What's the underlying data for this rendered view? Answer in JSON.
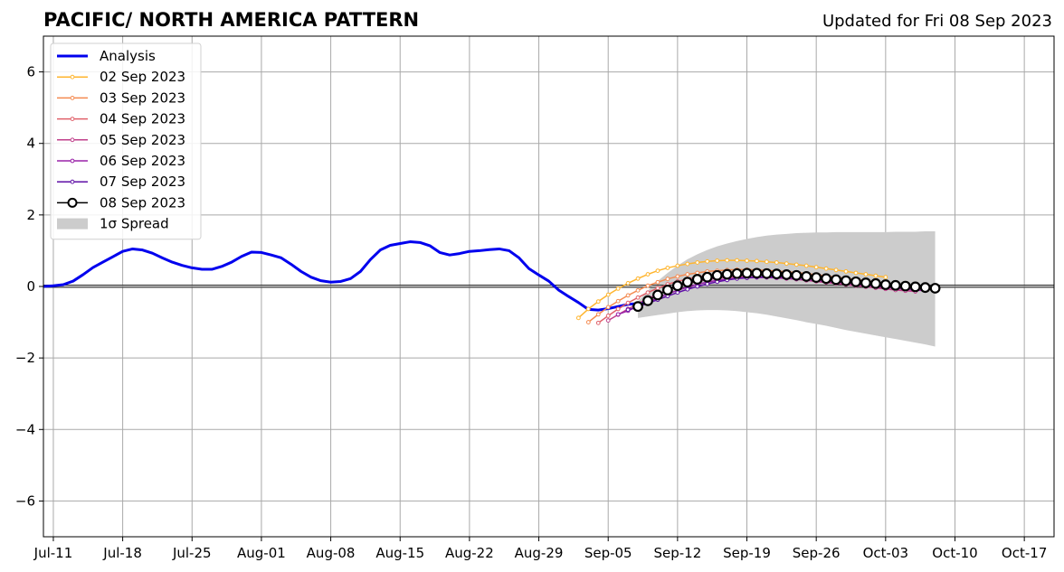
{
  "chart_data": {
    "type": "line",
    "title": "PACIFIC/ NORTH AMERICA PATTERN",
    "subtitle": "Updated for Fri 08 Sep 2023",
    "xlabel": "",
    "ylabel": "",
    "x_axis": {
      "type": "date",
      "range": [
        "2023-07-10",
        "2023-10-20"
      ],
      "tick_labels": [
        "Jul-11",
        "Jul-18",
        "Jul-25",
        "Aug-01",
        "Aug-08",
        "Aug-15",
        "Aug-22",
        "Aug-29",
        "Sep-05",
        "Sep-12",
        "Sep-19",
        "Sep-26",
        "Oct-03",
        "Oct-10",
        "Oct-17"
      ],
      "tick_dates": [
        "2023-07-11",
        "2023-07-18",
        "2023-07-25",
        "2023-08-01",
        "2023-08-08",
        "2023-08-15",
        "2023-08-22",
        "2023-08-29",
        "2023-09-05",
        "2023-09-12",
        "2023-09-19",
        "2023-09-26",
        "2023-10-03",
        "2023-10-10",
        "2023-10-17"
      ]
    },
    "y_axis": {
      "range": [
        -7,
        7
      ],
      "ticks": [
        -6,
        -4,
        -2,
        0,
        2,
        4,
        6
      ],
      "tick_labels": [
        "−6",
        "−4",
        "−2",
        "0",
        "2",
        "4",
        "6"
      ]
    },
    "grid": true,
    "zero_line": true,
    "legend": {
      "position": "top-left",
      "entries": [
        {
          "label": "Analysis",
          "color": "#0000ee",
          "style": "thick-line"
        },
        {
          "label": "02 Sep 2023",
          "color": "#ffb52e",
          "style": "dot-line"
        },
        {
          "label": "03 Sep 2023",
          "color": "#f48a50",
          "style": "dot-line"
        },
        {
          "label": "04 Sep 2023",
          "color": "#e0606a",
          "style": "dot-line"
        },
        {
          "label": "05 Sep 2023",
          "color": "#c03f8b",
          "style": "dot-line"
        },
        {
          "label": "06 Sep 2023",
          "color": "#9a22a8",
          "style": "dot-line"
        },
        {
          "label": "07 Sep 2023",
          "color": "#5e0fa6",
          "style": "dot-line"
        },
        {
          "label": "08 Sep 2023",
          "color": "#000000",
          "style": "circle-line"
        },
        {
          "label": "1σ Spread",
          "color": "#cccccc",
          "style": "patch"
        }
      ]
    },
    "analysis": {
      "name": "Analysis",
      "color": "#0000ee",
      "start_date": "2023-07-10",
      "values": [
        0.0,
        0.02,
        0.05,
        0.15,
        0.33,
        0.53,
        0.68,
        0.83,
        0.98,
        1.05,
        1.02,
        0.93,
        0.8,
        0.68,
        0.59,
        0.52,
        0.48,
        0.48,
        0.56,
        0.68,
        0.84,
        0.96,
        0.95,
        0.88,
        0.8,
        0.62,
        0.42,
        0.26,
        0.16,
        0.12,
        0.14,
        0.22,
        0.42,
        0.75,
        1.02,
        1.15,
        1.2,
        1.25,
        1.23,
        1.14,
        0.95,
        0.88,
        0.92,
        0.98,
        1.0,
        1.03,
        1.05,
        1.0,
        0.8,
        0.5,
        0.32,
        0.15,
        -0.1,
        -0.28,
        -0.45,
        -0.64,
        -0.66,
        -0.62,
        -0.56,
        -0.5,
        -0.48,
        -0.46
      ]
    },
    "forecasts": [
      {
        "name": "02 Sep 2023",
        "color": "#ffb52e",
        "start_date": "2023-09-02",
        "values": [
          -0.88,
          -0.63,
          -0.42,
          -0.23,
          -0.06,
          0.09,
          0.22,
          0.34,
          0.44,
          0.52,
          0.58,
          0.63,
          0.67,
          0.7,
          0.72,
          0.73,
          0.73,
          0.72,
          0.71,
          0.69,
          0.67,
          0.64,
          0.61,
          0.58,
          0.54,
          0.5,
          0.46,
          0.42,
          0.38,
          0.34,
          0.3,
          0.26
        ]
      },
      {
        "name": "03 Sep 2023",
        "color": "#f48a50",
        "start_date": "2023-09-03",
        "values": [
          -1.0,
          -0.78,
          -0.58,
          -0.41,
          -0.25,
          -0.11,
          0.02,
          0.12,
          0.21,
          0.28,
          0.34,
          0.38,
          0.42,
          0.44,
          0.46,
          0.47,
          0.47,
          0.46,
          0.45,
          0.43,
          0.41,
          0.39,
          0.36,
          0.33,
          0.3,
          0.26,
          0.23,
          0.19,
          0.16,
          0.12,
          0.09,
          0.05
        ]
      },
      {
        "name": "04 Sep 2023",
        "color": "#e0606a",
        "start_date": "2023-09-04",
        "values": [
          -1.02,
          -0.82,
          -0.63,
          -0.46,
          -0.31,
          -0.17,
          -0.05,
          0.06,
          0.14,
          0.21,
          0.27,
          0.31,
          0.34,
          0.36,
          0.37,
          0.37,
          0.36,
          0.34,
          0.32,
          0.3,
          0.27,
          0.24,
          0.21,
          0.18,
          0.15,
          0.11,
          0.08,
          0.04,
          0.01,
          -0.02,
          -0.05,
          -0.08
        ]
      },
      {
        "name": "05 Sep 2023",
        "color": "#c03f8b",
        "start_date": "2023-09-05",
        "values": [
          -0.95,
          -0.79,
          -0.63,
          -0.48,
          -0.34,
          -0.21,
          -0.1,
          0.0,
          0.08,
          0.14,
          0.19,
          0.23,
          0.25,
          0.27,
          0.27,
          0.27,
          0.26,
          0.24,
          0.22,
          0.2,
          0.17,
          0.14,
          0.11,
          0.08,
          0.05,
          0.02,
          -0.01,
          -0.04,
          -0.07,
          -0.1,
          -0.12,
          -0.14
        ]
      },
      {
        "name": "06 Sep 2023",
        "color": "#9a22a8",
        "start_date": "2023-09-06",
        "values": [
          -0.78,
          -0.68,
          -0.56,
          -0.44,
          -0.32,
          -0.21,
          -0.11,
          -0.02,
          0.06,
          0.12,
          0.17,
          0.2,
          0.23,
          0.24,
          0.25,
          0.25,
          0.24,
          0.23,
          0.21,
          0.19,
          0.17,
          0.14,
          0.12,
          0.09,
          0.06,
          0.03,
          0.0,
          -0.03,
          -0.05,
          -0.08,
          -0.1,
          -0.12
        ]
      },
      {
        "name": "07 Sep 2023",
        "color": "#5e0fa6",
        "start_date": "2023-09-07",
        "values": [
          -0.65,
          -0.57,
          -0.47,
          -0.37,
          -0.27,
          -0.17,
          -0.08,
          0.0,
          0.07,
          0.13,
          0.18,
          0.22,
          0.24,
          0.26,
          0.27,
          0.27,
          0.27,
          0.26,
          0.24,
          0.22,
          0.2,
          0.18,
          0.15,
          0.12,
          0.1,
          0.07,
          0.04,
          0.02,
          -0.01,
          -0.03,
          -0.05,
          -0.07
        ]
      },
      {
        "name": "08 Sep 2023",
        "color": "#000000",
        "start_date": "2023-09-08",
        "values": [
          -0.56,
          -0.4,
          -0.24,
          -0.1,
          0.02,
          0.12,
          0.2,
          0.26,
          0.31,
          0.34,
          0.36,
          0.37,
          0.37,
          0.36,
          0.35,
          0.33,
          0.31,
          0.28,
          0.25,
          0.22,
          0.19,
          0.16,
          0.13,
          0.1,
          0.08,
          0.05,
          0.03,
          0.01,
          -0.01,
          -0.03,
          -0.05
        ]
      }
    ],
    "spread": {
      "name": "1σ Spread",
      "color": "#cccccc",
      "start_date": "2023-09-08",
      "upper": [
        -0.42,
        -0.12,
        0.15,
        0.38,
        0.58,
        0.76,
        0.9,
        1.02,
        1.12,
        1.2,
        1.27,
        1.33,
        1.38,
        1.42,
        1.45,
        1.47,
        1.49,
        1.5,
        1.51,
        1.51,
        1.52,
        1.52,
        1.52,
        1.52,
        1.52,
        1.52,
        1.53,
        1.53,
        1.53,
        1.54,
        1.54
      ],
      "lower": [
        -0.88,
        -0.84,
        -0.8,
        -0.76,
        -0.72,
        -0.69,
        -0.67,
        -0.66,
        -0.66,
        -0.67,
        -0.69,
        -0.72,
        -0.75,
        -0.79,
        -0.84,
        -0.89,
        -0.94,
        -1.0,
        -1.05,
        -1.1,
        -1.16,
        -1.22,
        -1.27,
        -1.32,
        -1.37,
        -1.42,
        -1.47,
        -1.52,
        -1.57,
        -1.62,
        -1.68
      ]
    }
  }
}
